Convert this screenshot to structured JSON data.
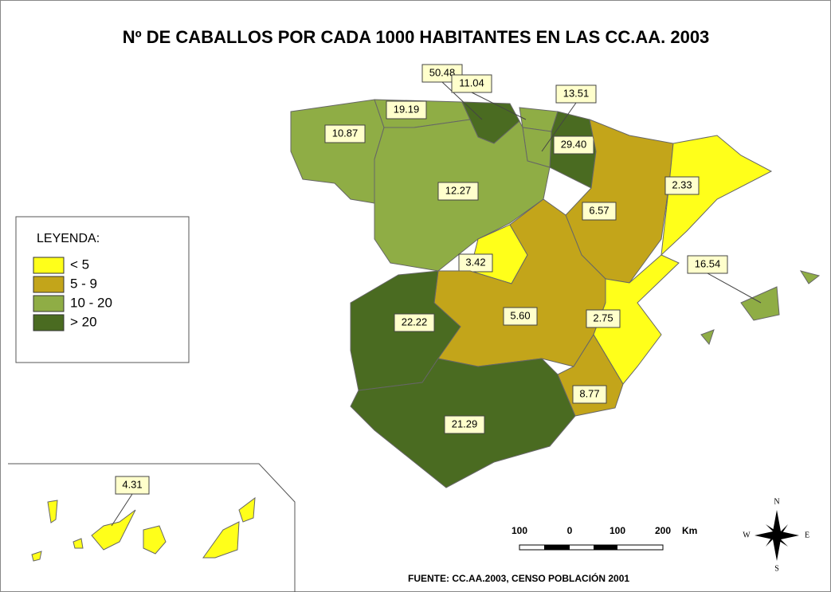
{
  "title": "Nº  DE CABALLOS POR CADA 1000 HABITANTES EN LAS CC.AA. 2003",
  "legend": {
    "title": "LEYENDA:",
    "items": [
      {
        "label": "< 5",
        "color": "#ffff1a"
      },
      {
        "label": "5 - 9",
        "color": "#c3a51a"
      },
      {
        "label": "10 - 20",
        "color": "#8fad45"
      },
      {
        "label": "> 20",
        "color": "#4a6b21"
      }
    ]
  },
  "regions": [
    {
      "label": "10.87",
      "color": "#8fad45"
    },
    {
      "label": "19.19",
      "color": "#8fad45"
    },
    {
      "label": "50.48",
      "color": "#4a6b21"
    },
    {
      "label": "11.04",
      "color": "#8fad45"
    },
    {
      "label": "29.40",
      "color": "#4a6b21"
    },
    {
      "label": "13.51",
      "color": "#8fad45"
    },
    {
      "label": "12.27",
      "color": "#8fad45"
    },
    {
      "label": "6.57",
      "color": "#c3a51a"
    },
    {
      "label": "2.33",
      "color": "#ffff1a"
    },
    {
      "label": "3.42",
      "color": "#ffff1a"
    },
    {
      "label": "5.60",
      "color": "#c3a51a"
    },
    {
      "label": "2.75",
      "color": "#ffff1a"
    },
    {
      "label": "22.22",
      "color": "#4a6b21"
    },
    {
      "label": "8.77",
      "color": "#c3a51a"
    },
    {
      "label": "21.29",
      "color": "#4a6b21"
    },
    {
      "label": "16.54",
      "color": "#8fad45"
    },
    {
      "label": "4.31",
      "color": "#ffff1a"
    }
  ],
  "scale": {
    "labels": [
      "100",
      "0",
      "100",
      "200"
    ],
    "unit": "Km"
  },
  "compass": {
    "n": "N",
    "s": "S",
    "w": "W",
    "e": "E"
  },
  "source": "FUENTE: CC.AA.2003, CENSO POBLACIÓN 2001"
}
